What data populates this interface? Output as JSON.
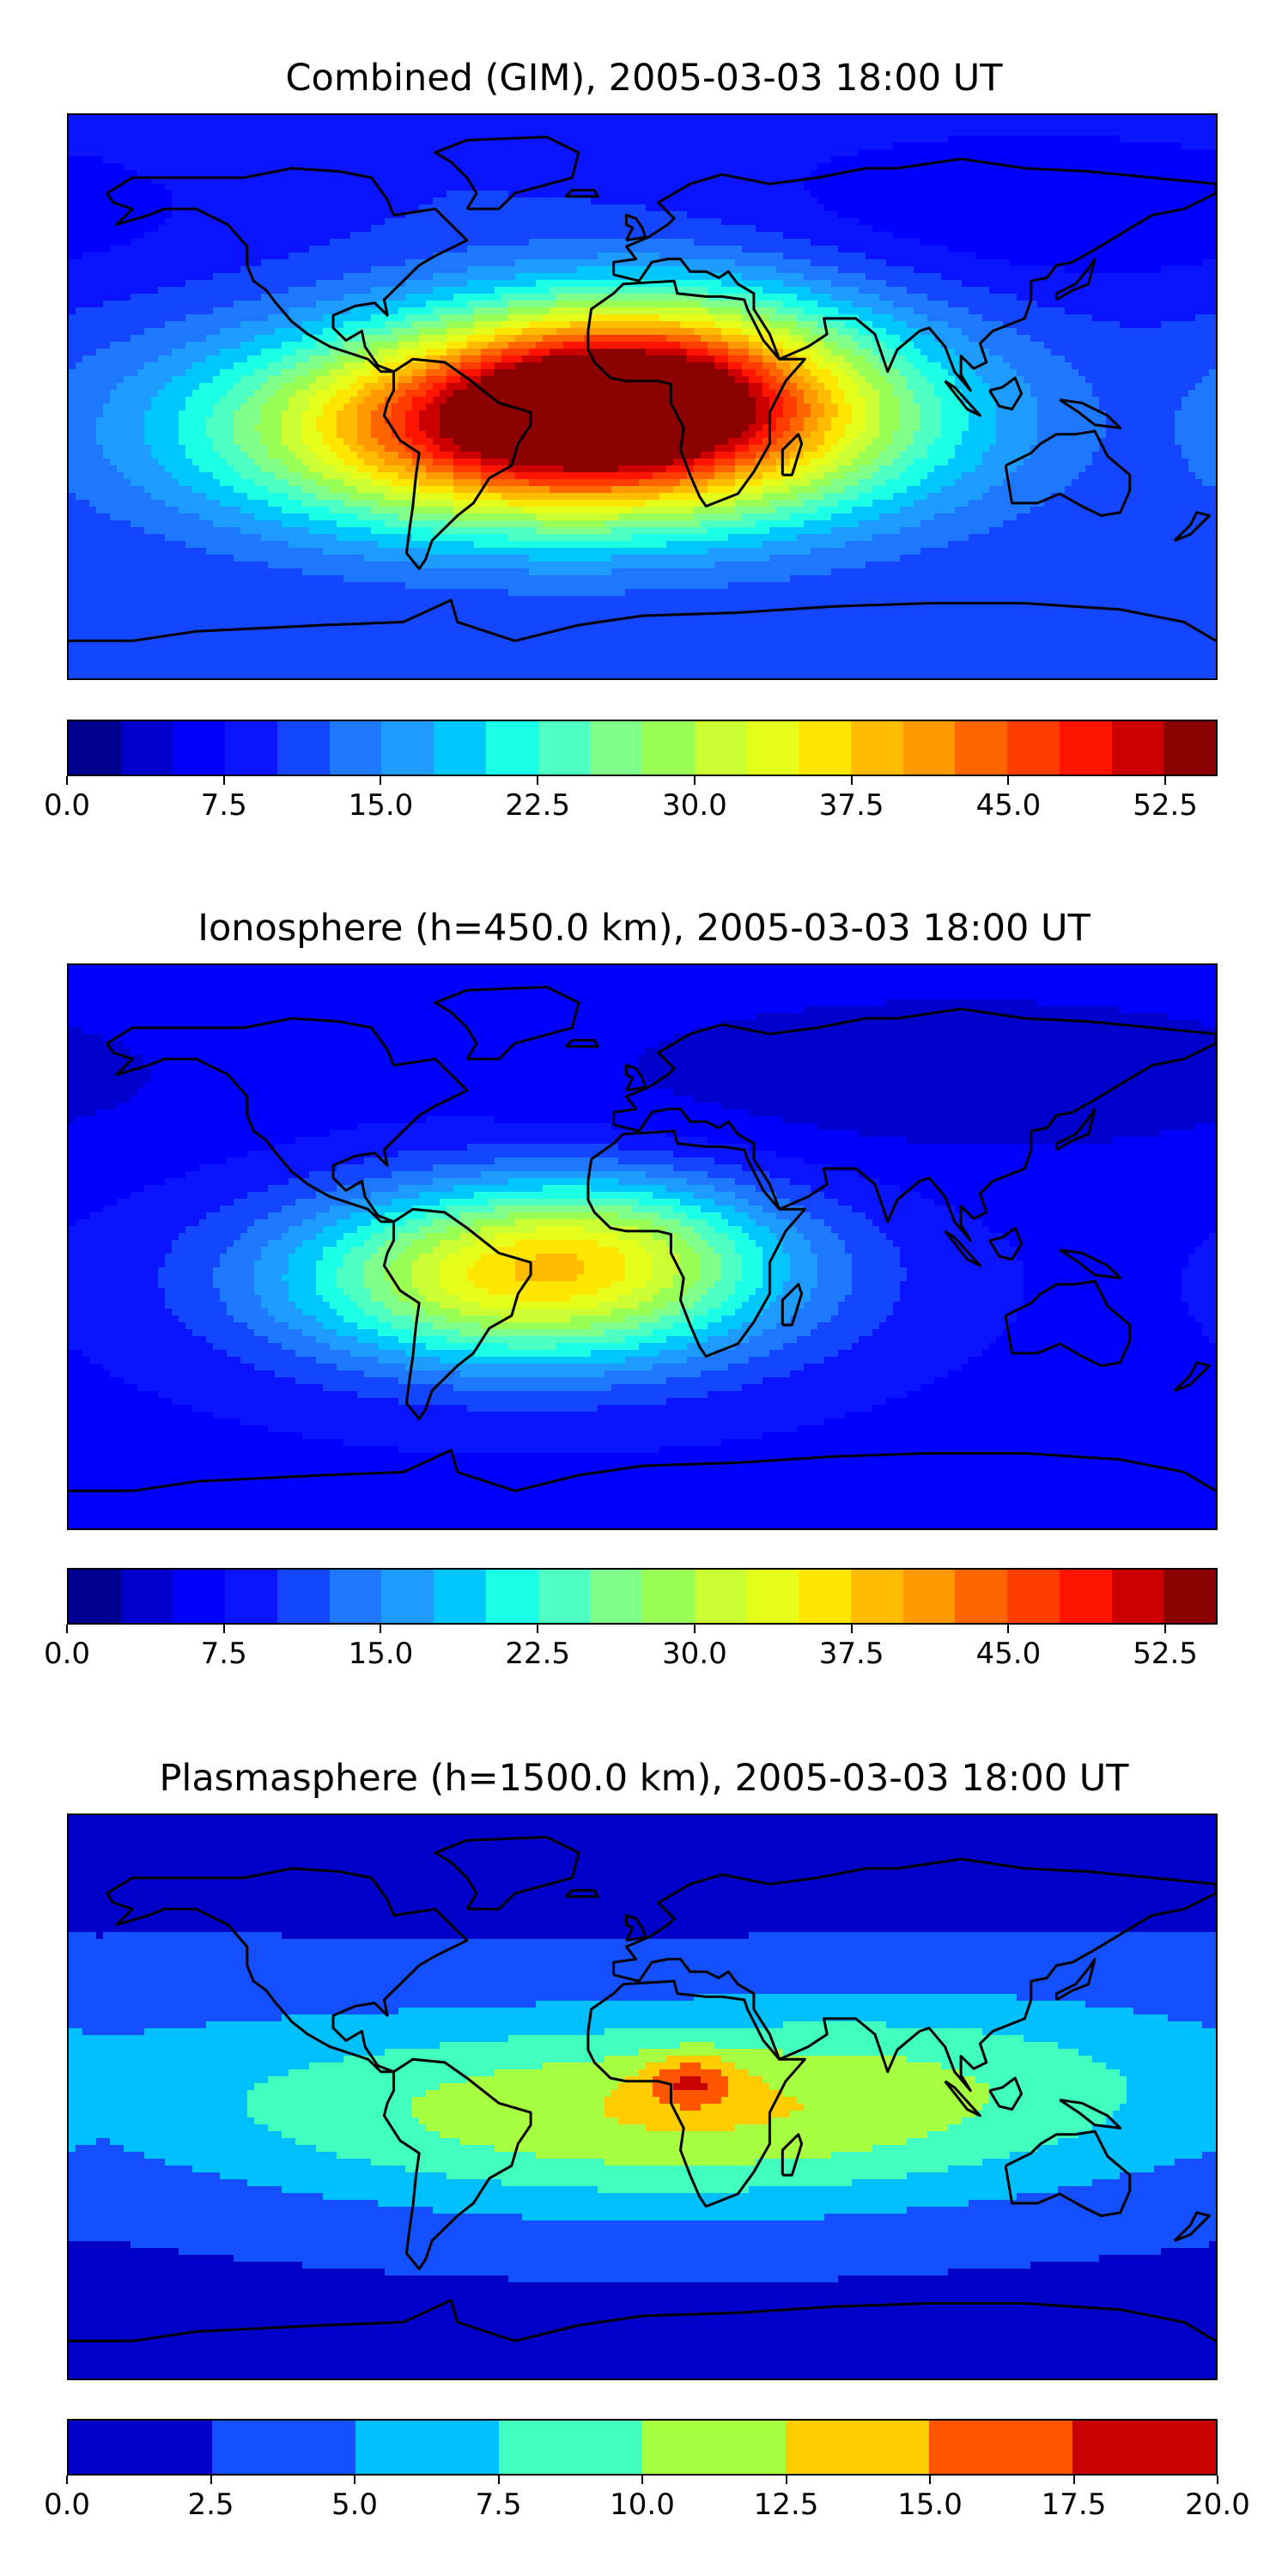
{
  "panels": [
    {
      "title": "Combined (GIM), 2005-03-03 18:00 UT",
      "colorbar": {
        "min": 0,
        "max": 55,
        "colors": [
          "#00008f",
          "#0000cc",
          "#0000ff",
          "#0a14ff",
          "#1446ff",
          "#1e78ff",
          "#1e9bff",
          "#00c8ff",
          "#1affe6",
          "#4dffc2",
          "#80ff8a",
          "#99ff55",
          "#ccff33",
          "#e6ff1a",
          "#ffe600",
          "#ffbb00",
          "#ff9900",
          "#ff6600",
          "#ff3c00",
          "#ff1400",
          "#cc0000",
          "#8b0000"
        ],
        "tick_labels": [
          "0.0",
          "7.5",
          "15.0",
          "22.5",
          "30.0",
          "37.5",
          "45.0",
          "52.5"
        ],
        "tick_values": [
          0,
          7.5,
          15,
          22.5,
          30,
          37.5,
          45,
          52.5
        ]
      },
      "field": {
        "background": 10,
        "blobs": [
          {
            "lon": -25,
            "lat": -10,
            "sx": 70,
            "sy": 22,
            "amp": 44
          },
          {
            "lon": -5,
            "lat": 5,
            "sx": 40,
            "sy": 18,
            "amp": 16
          },
          {
            "lon": 20,
            "lat": 15,
            "sx": 50,
            "sy": 25,
            "amp": 7
          },
          {
            "lon": 120,
            "lat": 60,
            "sx": 80,
            "sy": 20,
            "amp": -5
          }
        ]
      }
    },
    {
      "title": "Ionosphere  (h=450.0 km), 2005-03-03 18:00 UT",
      "colorbar": {
        "min": 0,
        "max": 55,
        "colors": [
          "#00008f",
          "#0000cc",
          "#0000ff",
          "#0a14ff",
          "#1446ff",
          "#1e78ff",
          "#1e9bff",
          "#00c8ff",
          "#1affe6",
          "#4dffc2",
          "#80ff8a",
          "#99ff55",
          "#ccff33",
          "#e6ff1a",
          "#ffe600",
          "#ffbb00",
          "#ff9900",
          "#ff6600",
          "#ff3c00",
          "#ff1400",
          "#cc0000",
          "#8b0000"
        ],
        "tick_labels": [
          "0.0",
          "7.5",
          "15.0",
          "22.5",
          "30.0",
          "37.5",
          "45.0",
          "52.5"
        ],
        "tick_values": [
          0,
          7.5,
          15,
          22.5,
          30,
          37.5,
          45,
          52.5
        ]
      },
      "field": {
        "background": 7,
        "blobs": [
          {
            "lon": -35,
            "lat": -10,
            "sx": 55,
            "sy": 20,
            "amp": 28
          },
          {
            "lon": -10,
            "lat": 5,
            "sx": 35,
            "sy": 15,
            "amp": 6
          },
          {
            "lon": 100,
            "lat": 55,
            "sx": 90,
            "sy": 20,
            "amp": -4
          }
        ]
      }
    },
    {
      "title": "Plasmasphere (h=1500.0 km), 2005-03-03 18:00 UT",
      "colorbar": {
        "min": 0,
        "max": 20,
        "colors": [
          "#0000c8",
          "#1450ff",
          "#00bfff",
          "#40ffbf",
          "#a6ff40",
          "#ffcc00",
          "#ff5500",
          "#c80000"
        ],
        "tick_labels": [
          "0.0",
          "2.5",
          "5.0",
          "7.5",
          "10.0",
          "12.5",
          "15.0",
          "17.5",
          "20.0"
        ],
        "tick_values": [
          0,
          2.5,
          5,
          7.5,
          10,
          12.5,
          15,
          17.5,
          20
        ]
      },
      "field": {
        "background": 2,
        "blobs": [
          {
            "lon": 10,
            "lat": -5,
            "sx": 100,
            "sy": 22,
            "amp": 10.5
          },
          {
            "lon": 15,
            "lat": 5,
            "sx": 10,
            "sy": 6,
            "amp": 6
          },
          {
            "lon": 100,
            "lat": 15,
            "sx": 55,
            "sy": 18,
            "amp": 2
          },
          {
            "lon": -150,
            "lat": 10,
            "sx": 60,
            "sy": 25,
            "amp": 1.5
          }
        ]
      }
    }
  ],
  "coastlines": [
    {
      "name": "north-america",
      "pts": [
        [
          -168,
          65
        ],
        [
          -160,
          70
        ],
        [
          -140,
          70
        ],
        [
          -125,
          70
        ],
        [
          -110,
          73
        ],
        [
          -95,
          72
        ],
        [
          -85,
          70
        ],
        [
          -80,
          63
        ],
        [
          -78,
          58
        ],
        [
          -65,
          60
        ],
        [
          -60,
          55
        ],
        [
          -55,
          50
        ],
        [
          -65,
          45
        ],
        [
          -70,
          42
        ],
        [
          -75,
          37
        ],
        [
          -81,
          31
        ],
        [
          -80,
          26
        ],
        [
          -84,
          30
        ],
        [
          -90,
          29
        ],
        [
          -97,
          26
        ],
        [
          -97,
          22
        ],
        [
          -93,
          18
        ],
        [
          -88,
          21
        ],
        [
          -87,
          16
        ],
        [
          -83,
          10
        ],
        [
          -78,
          8
        ],
        [
          -82,
          8
        ],
        [
          -86,
          12
        ],
        [
          -92,
          14
        ],
        [
          -98,
          16
        ],
        [
          -105,
          20
        ],
        [
          -110,
          24
        ],
        [
          -115,
          30
        ],
        [
          -118,
          34
        ],
        [
          -122,
          37
        ],
        [
          -124,
          42
        ],
        [
          -124,
          48
        ],
        [
          -130,
          55
        ],
        [
          -140,
          60
        ],
        [
          -150,
          60
        ],
        [
          -155,
          58
        ],
        [
          -165,
          55
        ],
        [
          -160,
          60
        ],
        [
          -166,
          62
        ],
        [
          -168,
          65
        ]
      ]
    },
    {
      "name": "greenland",
      "pts": [
        [
          -55,
          60
        ],
        [
          -45,
          60
        ],
        [
          -40,
          65
        ],
        [
          -22,
          70
        ],
        [
          -20,
          78
        ],
        [
          -30,
          83
        ],
        [
          -55,
          82
        ],
        [
          -65,
          78
        ],
        [
          -60,
          75
        ],
        [
          -55,
          70
        ],
        [
          -52,
          65
        ],
        [
          -55,
          60
        ]
      ]
    },
    {
      "name": "south-america",
      "pts": [
        [
          -78,
          8
        ],
        [
          -72,
          12
        ],
        [
          -62,
          11
        ],
        [
          -55,
          6
        ],
        [
          -50,
          2
        ],
        [
          -45,
          -2
        ],
        [
          -35,
          -5
        ],
        [
          -35,
          -9
        ],
        [
          -39,
          -15
        ],
        [
          -41,
          -22
        ],
        [
          -48,
          -26
        ],
        [
          -53,
          -34
        ],
        [
          -58,
          -38
        ],
        [
          -62,
          -42
        ],
        [
          -66,
          -46
        ],
        [
          -68,
          -52
        ],
        [
          -70,
          -55
        ],
        [
          -74,
          -50
        ],
        [
          -73,
          -42
        ],
        [
          -72,
          -35
        ],
        [
          -71,
          -25
        ],
        [
          -70,
          -18
        ],
        [
          -76,
          -14
        ],
        [
          -81,
          -6
        ],
        [
          -80,
          -2
        ],
        [
          -78,
          2
        ],
        [
          -78,
          8
        ]
      ]
    },
    {
      "name": "africa",
      "pts": [
        [
          -17,
          21
        ],
        [
          -16,
          28
        ],
        [
          -9,
          33
        ],
        [
          -6,
          36
        ],
        [
          10,
          37
        ],
        [
          11,
          33
        ],
        [
          20,
          32
        ],
        [
          25,
          32
        ],
        [
          32,
          31
        ],
        [
          33,
          28
        ],
        [
          38,
          18
        ],
        [
          43,
          12
        ],
        [
          51,
          12
        ],
        [
          45,
          5
        ],
        [
          40,
          -5
        ],
        [
          40,
          -15
        ],
        [
          35,
          -24
        ],
        [
          30,
          -31
        ],
        [
          20,
          -35
        ],
        [
          18,
          -32
        ],
        [
          15,
          -25
        ],
        [
          12,
          -17
        ],
        [
          13,
          -10
        ],
        [
          9,
          -2
        ],
        [
          9,
          4
        ],
        [
          5,
          5
        ],
        [
          -5,
          5
        ],
        [
          -10,
          6
        ],
        [
          -15,
          11
        ],
        [
          -17,
          15
        ],
        [
          -17,
          21
        ]
      ]
    },
    {
      "name": "eurasia",
      "pts": [
        [
          -9,
          39
        ],
        [
          -9,
          43
        ],
        [
          -2,
          44
        ],
        [
          -5,
          48
        ],
        [
          2,
          51
        ],
        [
          5,
          53
        ],
        [
          8,
          55
        ],
        [
          10,
          57
        ],
        [
          5,
          62
        ],
        [
          15,
          68
        ],
        [
          25,
          71
        ],
        [
          40,
          68
        ],
        [
          55,
          70
        ],
        [
          70,
          73
        ],
        [
          80,
          73
        ],
        [
          100,
          76
        ],
        [
          120,
          73
        ],
        [
          140,
          72
        ],
        [
          160,
          70
        ],
        [
          180,
          68
        ],
        [
          180,
          65
        ],
        [
          170,
          60
        ],
        [
          160,
          58
        ],
        [
          155,
          55
        ],
        [
          142,
          47
        ],
        [
          135,
          43
        ],
        [
          130,
          42
        ],
        [
          127,
          38
        ],
        [
          122,
          37
        ],
        [
          122,
          31
        ],
        [
          120,
          25
        ],
        [
          110,
          21
        ],
        [
          106,
          17
        ],
        [
          108,
          11
        ],
        [
          104,
          9
        ],
        [
          100,
          13
        ],
        [
          100,
          7
        ],
        [
          103,
          2
        ],
        [
          98,
          8
        ],
        [
          95,
          16
        ],
        [
          90,
          22
        ],
        [
          87,
          21
        ],
        [
          80,
          15
        ],
        [
          77,
          8
        ],
        [
          73,
          20
        ],
        [
          67,
          25
        ],
        [
          57,
          25
        ],
        [
          58,
          20
        ],
        [
          52,
          16
        ],
        [
          43,
          12
        ],
        [
          40,
          20
        ],
        [
          35,
          28
        ],
        [
          35,
          33
        ],
        [
          30,
          36
        ],
        [
          27,
          40
        ],
        [
          24,
          38
        ],
        [
          20,
          40
        ],
        [
          15,
          40
        ],
        [
          12,
          44
        ],
        [
          8,
          44
        ],
        [
          3,
          43
        ],
        [
          -1,
          37
        ],
        [
          -9,
          39
        ]
      ]
    },
    {
      "name": "australia",
      "pts": [
        [
          114,
          -22
        ],
        [
          116,
          -34
        ],
        [
          124,
          -34
        ],
        [
          131,
          -31
        ],
        [
          138,
          -35
        ],
        [
          144,
          -38
        ],
        [
          150,
          -37
        ],
        [
          153,
          -30
        ],
        [
          153,
          -25
        ],
        [
          146,
          -19
        ],
        [
          142,
          -11
        ],
        [
          136,
          -12
        ],
        [
          130,
          -12
        ],
        [
          125,
          -15
        ],
        [
          122,
          -18
        ],
        [
          114,
          -22
        ]
      ]
    },
    {
      "name": "antarctica",
      "pts": [
        [
          -180,
          -78
        ],
        [
          -160,
          -78
        ],
        [
          -140,
          -75
        ],
        [
          -100,
          -73
        ],
        [
          -75,
          -72
        ],
        [
          -60,
          -65
        ],
        [
          -58,
          -72
        ],
        [
          -40,
          -78
        ],
        [
          -20,
          -73
        ],
        [
          0,
          -70
        ],
        [
          30,
          -69
        ],
        [
          60,
          -67
        ],
        [
          90,
          -66
        ],
        [
          120,
          -66
        ],
        [
          150,
          -68
        ],
        [
          170,
          -72
        ],
        [
          180,
          -78
        ]
      ]
    },
    {
      "name": "madagascar",
      "pts": [
        [
          44,
          -25
        ],
        [
          47,
          -25
        ],
        [
          50,
          -15
        ],
        [
          49,
          -12
        ],
        [
          44,
          -17
        ],
        [
          44,
          -25
        ]
      ]
    },
    {
      "name": "great-britain",
      "pts": [
        [
          -5,
          50
        ],
        [
          1,
          51
        ],
        [
          0,
          54
        ],
        [
          -2,
          57
        ],
        [
          -5,
          58
        ],
        [
          -5,
          55
        ],
        [
          -3,
          54
        ],
        [
          -5,
          50
        ]
      ]
    },
    {
      "name": "japan",
      "pts": [
        [
          130,
          31
        ],
        [
          135,
          34
        ],
        [
          140,
          36
        ],
        [
          141,
          40
        ],
        [
          142,
          44
        ],
        [
          140,
          41
        ],
        [
          136,
          36
        ],
        [
          130,
          33
        ],
        [
          130,
          31
        ]
      ]
    },
    {
      "name": "borneo",
      "pts": [
        [
          109,
          2
        ],
        [
          112,
          -3
        ],
        [
          116,
          -4
        ],
        [
          119,
          1
        ],
        [
          117,
          6
        ],
        [
          113,
          3
        ],
        [
          109,
          2
        ]
      ]
    },
    {
      "name": "sumatra",
      "pts": [
        [
          95,
          5
        ],
        [
          98,
          3
        ],
        [
          106,
          -6
        ],
        [
          102,
          -4
        ],
        [
          95,
          5
        ]
      ]
    },
    {
      "name": "new-guinea",
      "pts": [
        [
          131,
          -1
        ],
        [
          138,
          -2
        ],
        [
          146,
          -6
        ],
        [
          150,
          -10
        ],
        [
          142,
          -9
        ],
        [
          137,
          -5
        ],
        [
          131,
          -1
        ]
      ]
    },
    {
      "name": "new-zealand",
      "pts": [
        [
          167,
          -46
        ],
        [
          172,
          -41
        ],
        [
          174,
          -37
        ],
        [
          178,
          -38
        ],
        [
          172,
          -44
        ],
        [
          167,
          -46
        ]
      ]
    },
    {
      "name": "iceland",
      "pts": [
        [
          -24,
          64
        ],
        [
          -14,
          64
        ],
        [
          -15,
          66
        ],
        [
          -22,
          66
        ],
        [
          -24,
          64
        ]
      ]
    }
  ]
}
